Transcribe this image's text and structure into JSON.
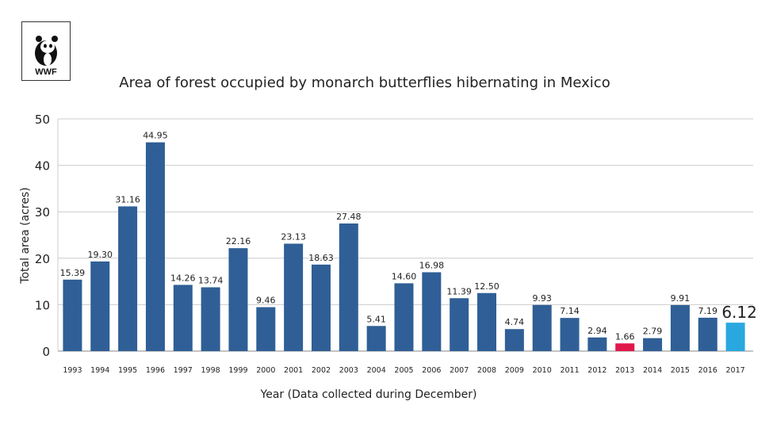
{
  "logo": {
    "text": "WWF",
    "icon": "panda-icon"
  },
  "chart_data": {
    "type": "bar",
    "title": "Area of forest occupied by monarch butterflies hibernating in Mexico",
    "xlabel": "Year (Data collected during December)",
    "ylabel": "Total area (acres)",
    "ylim": [
      0,
      50
    ],
    "yticks": [
      0,
      10,
      20,
      30,
      40,
      50
    ],
    "grid": true,
    "categories": [
      "1993",
      "1994",
      "1995",
      "1996",
      "1997",
      "1998",
      "1999",
      "2000",
      "2001",
      "2002",
      "2003",
      "2004",
      "2005",
      "2006",
      "2007",
      "2008",
      "2009",
      "2010",
      "2011",
      "2012",
      "2013",
      "2014",
      "2015",
      "2016",
      "2017"
    ],
    "values": [
      15.39,
      19.3,
      31.16,
      44.95,
      14.26,
      13.74,
      22.16,
      9.46,
      23.13,
      18.63,
      27.48,
      5.41,
      14.6,
      16.98,
      11.39,
      12.5,
      4.74,
      9.93,
      7.14,
      2.94,
      1.66,
      2.79,
      9.91,
      7.19,
      6.12
    ],
    "labels": [
      "15.39",
      "19.30",
      "31.16",
      "44.95",
      "14.26",
      "13.74",
      "22.16",
      "9.46",
      "23.13",
      "18.63",
      "27.48",
      "5.41",
      "14.60",
      "16.98",
      "11.39",
      "12.50",
      "4.74",
      "9.93",
      "7.14",
      "2.94",
      "1.66",
      "2.79",
      "9.91",
      "7.19",
      "6.12"
    ],
    "colors": {
      "default": "#2f5f96",
      "highlight_low": "#e0174a",
      "latest": "#29a8e0"
    },
    "highlight": {
      "2013": "highlight_low",
      "2017": "latest"
    }
  }
}
